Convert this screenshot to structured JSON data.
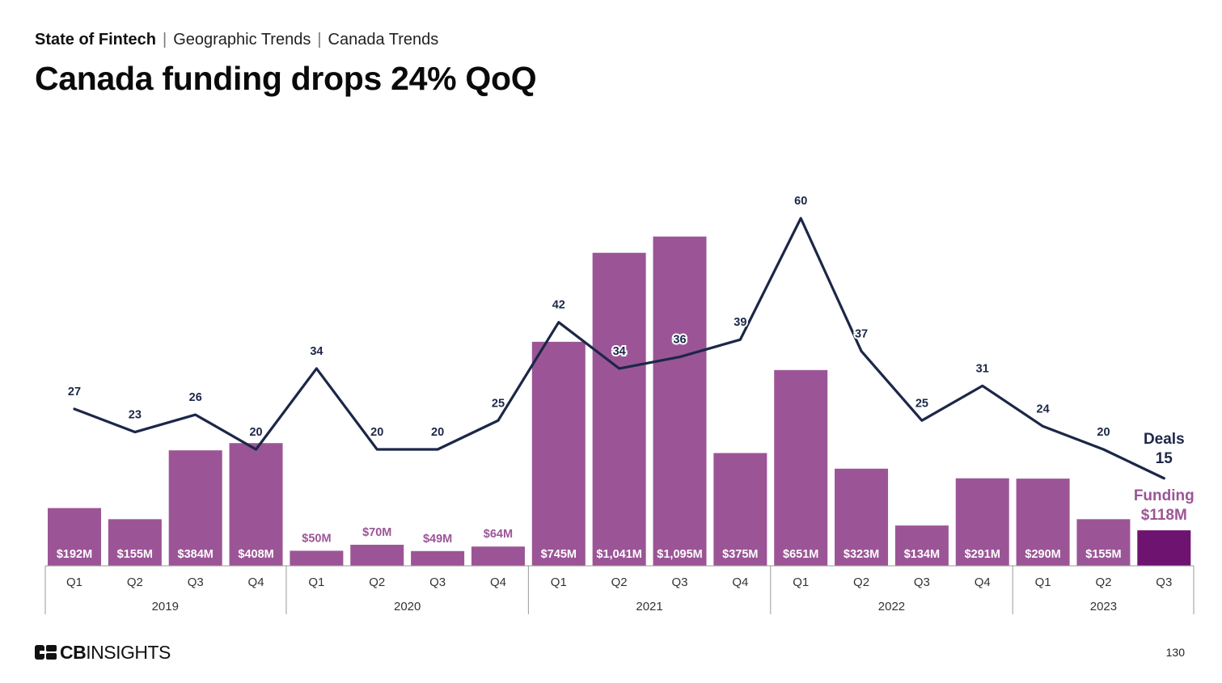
{
  "header": {
    "breadcrumb": [
      "State of Fintech",
      "Geographic Trends",
      "Canada Trends"
    ],
    "title": "Canada funding drops 24% QoQ"
  },
  "footer": {
    "logo_text_bold": "CB",
    "logo_text_light": "INSIGHTS",
    "page_number": "130"
  },
  "colors": {
    "bar": "#9b5596",
    "bar_highlight": "#6e1470",
    "line": "#1c2748",
    "funding_label": "#9b5596",
    "axis": "#9a9a9a"
  },
  "chart_data": {
    "type": "bar",
    "categories": [
      "Q1",
      "Q2",
      "Q3",
      "Q4",
      "Q1",
      "Q2",
      "Q3",
      "Q4",
      "Q1",
      "Q2",
      "Q3",
      "Q4",
      "Q1",
      "Q2",
      "Q3",
      "Q4",
      "Q1",
      "Q2",
      "Q3"
    ],
    "groups": [
      {
        "label": "2019",
        "count": 4
      },
      {
        "label": "2020",
        "count": 4
      },
      {
        "label": "2021",
        "count": 4
      },
      {
        "label": "2022",
        "count": 4
      },
      {
        "label": "2023",
        "count": 3
      }
    ],
    "series": [
      {
        "name": "Funding",
        "type": "bar",
        "values": [
          192,
          155,
          384,
          408,
          50,
          70,
          49,
          64,
          745,
          1041,
          1095,
          375,
          651,
          323,
          134,
          291,
          290,
          155,
          118
        ],
        "labels": [
          "$192M",
          "$155M",
          "$384M",
          "$408M",
          "$50M",
          "$70M",
          "$49M",
          "$64M",
          "$745M",
          "$1,041M",
          "$1,095M",
          "$375M",
          "$651M",
          "$323M",
          "$134M",
          "$291M",
          "$290M",
          "$155M",
          ""
        ]
      },
      {
        "name": "Deals",
        "type": "line",
        "values": [
          27,
          23,
          26,
          20,
          34,
          20,
          20,
          25,
          42,
          34,
          36,
          39,
          60,
          37,
          25,
          31,
          24,
          20,
          15
        ],
        "labels": [
          "27",
          "23",
          "26",
          "20",
          "34",
          "20",
          "20",
          "25",
          "42",
          "34",
          "36",
          "39",
          "60",
          "37",
          "25",
          "31",
          "24",
          "20",
          ""
        ]
      }
    ],
    "callouts": {
      "deals_title": "Deals",
      "deals_value": "15",
      "funding_title": "Funding",
      "funding_value": "$118M"
    }
  }
}
